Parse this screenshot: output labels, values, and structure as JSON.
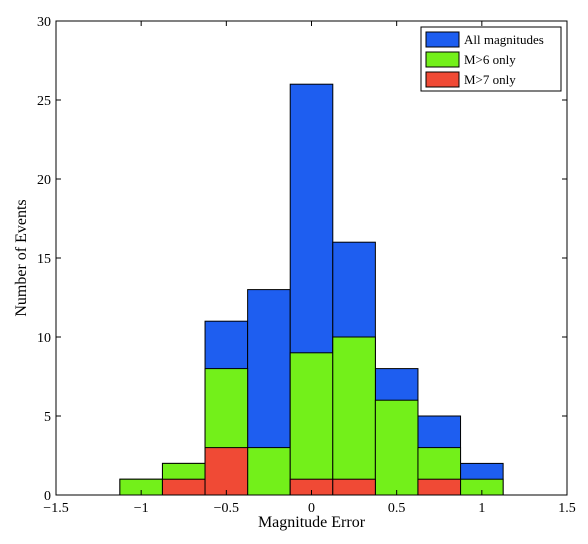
{
  "chart_data": {
    "type": "bar",
    "title": "",
    "xlabel": "Magnitude Error",
    "ylabel": "Number of Events",
    "xlim": [
      -1.5,
      1.5
    ],
    "ylim": [
      0,
      30
    ],
    "xticks": [
      -1.5,
      -1,
      -0.5,
      0,
      0.5,
      1,
      1.5
    ],
    "xtick_labels": [
      "−1.5",
      "−1",
      "−0.5",
      "0",
      "0.5",
      "1",
      "1.5"
    ],
    "yticks": [
      0,
      5,
      10,
      15,
      20,
      25,
      30
    ],
    "ytick_labels": [
      "0",
      "5",
      "10",
      "15",
      "20",
      "25",
      "30"
    ],
    "bin_edges": [
      -1.375,
      -1.125,
      -0.875,
      -0.625,
      -0.375,
      -0.125,
      0.125,
      0.375,
      0.625,
      0.875,
      1.125,
      1.375
    ],
    "grid": false,
    "legend_position": "top-right",
    "series": [
      {
        "name": "All magnitudes",
        "color": "#1e5ef0",
        "values": [
          0,
          1,
          2,
          11,
          13,
          26,
          16,
          8,
          5,
          2,
          0
        ]
      },
      {
        "name": "M>6 only",
        "color": "#73f01a",
        "values": [
          0,
          1,
          2,
          8,
          3,
          9,
          10,
          6,
          3,
          1,
          0
        ]
      },
      {
        "name": "M>7 only",
        "color": "#f04a35",
        "values": [
          0,
          0,
          1,
          3,
          0,
          1,
          1,
          0,
          1,
          0,
          0
        ]
      }
    ]
  }
}
